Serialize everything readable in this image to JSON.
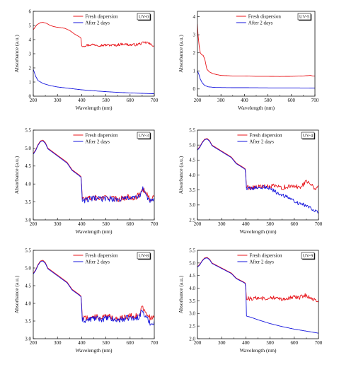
{
  "chart_data": [
    {
      "id": "UV-0",
      "type": "line",
      "label_box": "UV-0",
      "xlabel": "Wavelength (nm)",
      "ylabel": "Absorbance (a.u.)",
      "xlim": [
        200,
        700
      ],
      "ylim": [
        0,
        6
      ],
      "xticks": [
        200,
        300,
        400,
        500,
        600,
        700
      ],
      "yticks": [
        0,
        1,
        2,
        3,
        4,
        5,
        6
      ],
      "ytick_labels": [
        "0",
        "1",
        "2",
        "3",
        "4",
        "5",
        "6"
      ],
      "legend": "top-right",
      "series": [
        {
          "name": "Fresh dispersion",
          "color": "#e8141a",
          "noise": 0.09,
          "x": [
            200,
            215,
            230,
            240,
            255,
            270,
            290,
            310,
            330,
            350,
            370,
            385,
            395,
            398,
            400,
            420,
            450,
            480,
            510,
            540,
            570,
            600,
            630,
            650,
            670,
            690,
            700
          ],
          "y": [
            4.7,
            5.05,
            5.2,
            5.22,
            5.15,
            5.0,
            4.9,
            4.85,
            4.8,
            4.65,
            4.4,
            4.25,
            4.15,
            4.05,
            3.55,
            3.6,
            3.65,
            3.6,
            3.62,
            3.6,
            3.7,
            3.62,
            3.65,
            3.75,
            3.8,
            3.6,
            3.6
          ]
        },
        {
          "name": "After 2 days",
          "color": "#1515dd",
          "noise": 0,
          "x": [
            200,
            210,
            220,
            240,
            270,
            300,
            350,
            400,
            450,
            500,
            550,
            600,
            650,
            700
          ],
          "y": [
            1.9,
            1.4,
            1.1,
            0.9,
            0.75,
            0.65,
            0.55,
            0.45,
            0.38,
            0.32,
            0.27,
            0.23,
            0.2,
            0.17
          ]
        }
      ]
    },
    {
      "id": "UV-5",
      "type": "line",
      "label_box": "UV-5",
      "xlabel": "Wavelength (nm)",
      "ylabel": "Absorbance (a.u.)",
      "xlim": [
        200,
        700
      ],
      "ylim": [
        -0.4,
        4.3
      ],
      "xticks": [
        200,
        300,
        400,
        500,
        600,
        700
      ],
      "yticks": [
        0,
        1,
        2,
        3,
        4
      ],
      "ytick_labels": [
        "0",
        "1",
        "2",
        "3",
        "4"
      ],
      "legend": "top-right",
      "series": [
        {
          "name": "Fresh dispersion",
          "color": "#e8141a",
          "noise": 0,
          "x": [
            200,
            203,
            207,
            212,
            218,
            225,
            232,
            240,
            250,
            265,
            280,
            300,
            350,
            400,
            450,
            500,
            550,
            600,
            650,
            680,
            690,
            700
          ],
          "y": [
            3.6,
            2.9,
            2.4,
            2.0,
            1.9,
            1.85,
            1.6,
            1.1,
            0.95,
            0.85,
            0.8,
            0.75,
            0.72,
            0.72,
            0.7,
            0.7,
            0.69,
            0.7,
            0.72,
            0.75,
            0.72,
            0.72
          ]
        },
        {
          "name": "After 2 days",
          "color": "#1515dd",
          "noise": 0,
          "x": [
            200,
            205,
            212,
            220,
            230,
            245,
            260,
            280,
            300,
            350,
            400,
            500,
            600,
            700
          ],
          "y": [
            1.0,
            0.85,
            0.55,
            0.35,
            0.2,
            0.12,
            0.1,
            0.08,
            0.08,
            0.07,
            0.07,
            0.06,
            0.06,
            0.05
          ]
        }
      ]
    },
    {
      "id": "UV-3",
      "type": "line",
      "label_box": "UV-3",
      "xlabel": "Wavelength (nm)",
      "ylabel": "Absorbance (a.u.)",
      "xlim": [
        200,
        700
      ],
      "ylim": [
        3.0,
        5.5
      ],
      "xticks": [
        200,
        300,
        400,
        500,
        600,
        700
      ],
      "yticks": [
        3.0,
        3.5,
        4.0,
        4.5,
        5.0,
        5.5
      ],
      "ytick_labels": [
        "3.0",
        "3.5",
        "4.0",
        "4.5",
        "5.0",
        "5.5"
      ],
      "legend": "top-right",
      "series": [
        {
          "name": "Fresh dispersion",
          "color": "#e8141a",
          "noise": 0.08,
          "x": [
            200,
            210,
            220,
            230,
            240,
            250,
            260,
            270,
            280,
            290,
            300,
            310,
            320,
            330,
            340,
            350,
            360,
            370,
            380,
            390,
            398,
            400,
            402,
            420,
            450,
            480,
            510,
            540,
            570,
            600,
            620,
            640,
            650,
            660,
            680,
            690,
            700
          ],
          "y": [
            4.85,
            4.95,
            5.1,
            5.2,
            5.22,
            5.15,
            5.0,
            4.95,
            4.9,
            4.85,
            4.8,
            4.75,
            4.7,
            4.65,
            4.6,
            4.5,
            4.4,
            4.35,
            4.3,
            4.25,
            4.2,
            3.95,
            3.6,
            3.58,
            3.62,
            3.6,
            3.63,
            3.58,
            3.6,
            3.65,
            3.62,
            3.7,
            3.9,
            3.8,
            3.6,
            3.55,
            3.65
          ]
        },
        {
          "name": "After 2 days",
          "color": "#1515dd",
          "noise": 0.08,
          "x": [
            200,
            210,
            220,
            230,
            240,
            250,
            260,
            270,
            280,
            290,
            300,
            310,
            320,
            330,
            340,
            350,
            360,
            370,
            380,
            390,
            398,
            400,
            402,
            420,
            450,
            480,
            510,
            540,
            570,
            600,
            620,
            640,
            650,
            660,
            680,
            690,
            700
          ],
          "y": [
            4.83,
            4.93,
            5.08,
            5.18,
            5.2,
            5.13,
            4.98,
            4.93,
            4.88,
            4.83,
            4.78,
            4.73,
            4.68,
            4.63,
            4.58,
            4.48,
            4.38,
            4.33,
            4.28,
            4.23,
            4.18,
            3.9,
            3.55,
            3.55,
            3.6,
            3.58,
            3.6,
            3.56,
            3.58,
            3.62,
            3.6,
            3.68,
            3.88,
            3.75,
            3.55,
            3.5,
            3.62
          ]
        }
      ]
    },
    {
      "id": "UV-4",
      "type": "line",
      "label_box": "UV-4",
      "xlabel": "Wavelength (nm)",
      "ylabel": "Absorbance (a.u.)",
      "xlim": [
        200,
        700
      ],
      "ylim": [
        2.5,
        5.5
      ],
      "xticks": [
        200,
        300,
        400,
        500,
        600,
        700
      ],
      "yticks": [
        2.5,
        3.0,
        3.5,
        4.0,
        4.5,
        5.0,
        5.5
      ],
      "ytick_labels": [
        "2.5",
        "3.0",
        "3.5",
        "4.0",
        "4.5",
        "5.0",
        "5.5"
      ],
      "legend": "top-right",
      "series": [
        {
          "name": "Fresh dispersion",
          "color": "#e8141a",
          "noise": 0.08,
          "x": [
            200,
            210,
            220,
            230,
            240,
            250,
            260,
            270,
            280,
            290,
            300,
            310,
            320,
            330,
            340,
            350,
            360,
            370,
            380,
            390,
            398,
            400,
            402,
            420,
            450,
            480,
            510,
            540,
            570,
            600,
            620,
            640,
            650,
            660,
            680,
            690,
            700
          ],
          "y": [
            4.85,
            4.95,
            5.1,
            5.2,
            5.22,
            5.15,
            5.0,
            4.95,
            4.9,
            4.85,
            4.8,
            4.75,
            4.7,
            4.65,
            4.6,
            4.5,
            4.4,
            4.35,
            4.3,
            4.25,
            4.2,
            3.95,
            3.6,
            3.58,
            3.62,
            3.6,
            3.63,
            3.58,
            3.6,
            3.62,
            3.6,
            3.7,
            3.85,
            3.75,
            3.6,
            3.55,
            3.65
          ]
        },
        {
          "name": "After 2 days",
          "color": "#1515dd",
          "noise": 0.06,
          "x": [
            200,
            210,
            220,
            230,
            240,
            250,
            260,
            270,
            280,
            290,
            300,
            310,
            320,
            330,
            340,
            350,
            360,
            370,
            380,
            390,
            398,
            400,
            402,
            420,
            450,
            480,
            500,
            520,
            540,
            560,
            580,
            600,
            620,
            640,
            660,
            680,
            700
          ],
          "y": [
            4.83,
            4.93,
            5.08,
            5.18,
            5.2,
            5.13,
            4.98,
            4.93,
            4.88,
            4.83,
            4.78,
            4.73,
            4.68,
            4.63,
            4.58,
            4.48,
            4.38,
            4.33,
            4.28,
            4.23,
            4.18,
            3.9,
            3.55,
            3.55,
            3.58,
            3.6,
            3.55,
            3.45,
            3.35,
            3.3,
            3.22,
            3.15,
            3.05,
            3.0,
            2.95,
            2.85,
            2.75
          ]
        }
      ]
    },
    {
      "id": "UV-8",
      "type": "line",
      "label_box": "UV-8",
      "xlabel": "Wavelength (nm)",
      "ylabel": "Absorbance (a.u.)",
      "xlim": [
        200,
        700
      ],
      "ylim": [
        3.0,
        5.5
      ],
      "xticks": [
        200,
        300,
        400,
        500,
        600,
        700
      ],
      "yticks": [
        3.0,
        3.5,
        4.0,
        4.5,
        5.0,
        5.5
      ],
      "ytick_labels": [
        "3.0",
        "3.5",
        "4.0",
        "4.5",
        "5.0",
        "5.5"
      ],
      "legend": "top-right",
      "series": [
        {
          "name": "Fresh dispersion",
          "color": "#e8141a",
          "noise": 0.08,
          "x": [
            200,
            210,
            220,
            230,
            240,
            250,
            260,
            270,
            280,
            290,
            300,
            310,
            320,
            330,
            340,
            350,
            360,
            370,
            380,
            390,
            398,
            400,
            402,
            420,
            450,
            480,
            510,
            540,
            570,
            600,
            620,
            640,
            650,
            660,
            680,
            690,
            700
          ],
          "y": [
            4.85,
            4.95,
            5.1,
            5.2,
            5.22,
            5.15,
            5.0,
            4.95,
            4.9,
            4.85,
            4.8,
            4.75,
            4.7,
            4.65,
            4.6,
            4.5,
            4.4,
            4.35,
            4.3,
            4.25,
            4.2,
            3.95,
            3.6,
            3.58,
            3.62,
            3.6,
            3.63,
            3.58,
            3.6,
            3.65,
            3.62,
            3.7,
            3.92,
            3.8,
            3.62,
            3.55,
            3.65
          ]
        },
        {
          "name": "After 2 days",
          "color": "#1515dd",
          "noise": 0.08,
          "x": [
            200,
            210,
            220,
            230,
            240,
            250,
            260,
            270,
            280,
            290,
            300,
            310,
            320,
            330,
            340,
            350,
            360,
            370,
            380,
            390,
            398,
            400,
            402,
            420,
            450,
            480,
            510,
            540,
            570,
            600,
            620,
            640,
            650,
            660,
            680,
            690,
            700
          ],
          "y": [
            4.83,
            4.93,
            5.08,
            5.18,
            5.2,
            5.13,
            4.98,
            4.93,
            4.88,
            4.83,
            4.78,
            4.73,
            4.68,
            4.63,
            4.58,
            4.48,
            4.38,
            4.33,
            4.28,
            4.23,
            4.18,
            3.9,
            3.52,
            3.52,
            3.58,
            3.55,
            3.58,
            3.52,
            3.55,
            3.6,
            3.55,
            3.65,
            3.82,
            3.65,
            3.48,
            3.4,
            3.5
          ]
        }
      ]
    },
    {
      "id": "UV-9",
      "type": "line",
      "label_box": "UV-9",
      "xlabel": "Wavelength (nm)",
      "ylabel": "Absorbance (a.u.)",
      "xlim": [
        200,
        700
      ],
      "ylim": [
        2.0,
        5.5
      ],
      "xticks": [
        200,
        300,
        400,
        500,
        600,
        700
      ],
      "yticks": [
        2.0,
        2.5,
        3.0,
        3.5,
        4.0,
        4.5,
        5.0,
        5.5
      ],
      "ytick_labels": [
        "2.0",
        "2.5",
        "3.0",
        "3.5",
        "4.0",
        "4.5",
        "5.0",
        "5.5"
      ],
      "legend": "top-right",
      "series": [
        {
          "name": "Fresh dispersion",
          "color": "#e8141a",
          "noise": 0.08,
          "x": [
            200,
            210,
            220,
            230,
            240,
            250,
            260,
            270,
            280,
            290,
            300,
            310,
            320,
            330,
            340,
            350,
            360,
            370,
            380,
            390,
            398,
            400,
            402,
            420,
            450,
            480,
            510,
            540,
            570,
            600,
            620,
            640,
            650,
            660,
            680,
            690,
            700
          ],
          "y": [
            4.85,
            4.95,
            5.1,
            5.2,
            5.22,
            5.15,
            5.0,
            4.95,
            4.9,
            4.85,
            4.8,
            4.75,
            4.7,
            4.65,
            4.6,
            4.5,
            4.4,
            4.35,
            4.3,
            4.25,
            4.2,
            3.95,
            3.6,
            3.58,
            3.62,
            3.6,
            3.63,
            3.58,
            3.6,
            3.65,
            3.62,
            3.7,
            3.72,
            3.65,
            3.55,
            3.5,
            3.52
          ]
        },
        {
          "name": "After 2 days",
          "color": "#1515dd",
          "noise": 0,
          "x": [
            200,
            210,
            220,
            230,
            240,
            250,
            260,
            270,
            280,
            290,
            300,
            310,
            320,
            330,
            340,
            350,
            360,
            370,
            380,
            390,
            398,
            400,
            402,
            420,
            450,
            500,
            550,
            600,
            650,
            700
          ],
          "y": [
            4.83,
            4.93,
            5.08,
            5.18,
            5.2,
            5.13,
            4.98,
            4.93,
            4.88,
            4.83,
            4.78,
            4.73,
            4.68,
            4.63,
            4.58,
            4.48,
            4.38,
            4.33,
            4.28,
            4.23,
            4.18,
            3.9,
            2.9,
            2.85,
            2.75,
            2.6,
            2.48,
            2.38,
            2.3,
            2.22
          ]
        }
      ]
    }
  ]
}
